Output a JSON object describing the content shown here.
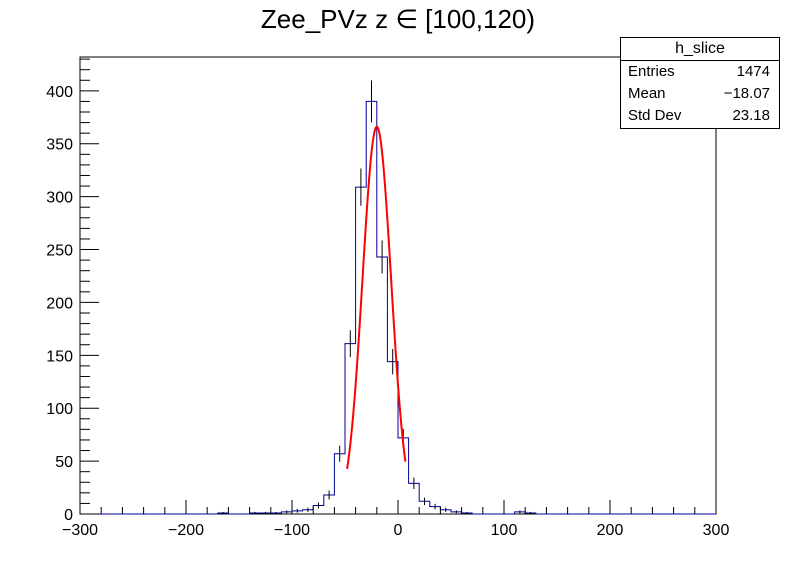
{
  "chart_data": {
    "type": "bar",
    "title": "Zee_PVz z ∈ [100,120)",
    "xlabel": "",
    "ylabel": "",
    "xlim": [
      -300,
      300
    ],
    "ylim": [
      0,
      432
    ],
    "bin_width": 10,
    "x_ticks": [
      "−300",
      "−200",
      "−100",
      "0",
      "100",
      "200",
      "300"
    ],
    "y_ticks": [
      "0",
      "50",
      "100",
      "150",
      "200",
      "250",
      "300",
      "350",
      "400"
    ],
    "grid": false,
    "legend": "top-right",
    "histogram": {
      "name": "h_slice",
      "color": "#000099",
      "bins": [
        {
          "x": -165,
          "y": 1
        },
        {
          "x": -135,
          "y": 1
        },
        {
          "x": -125,
          "y": 1
        },
        {
          "x": -115,
          "y": 1
        },
        {
          "x": -105,
          "y": 2
        },
        {
          "x": -95,
          "y": 3
        },
        {
          "x": -85,
          "y": 4
        },
        {
          "x": -75,
          "y": 8
        },
        {
          "x": -65,
          "y": 18
        },
        {
          "x": -55,
          "y": 57
        },
        {
          "x": -45,
          "y": 161
        },
        {
          "x": -35,
          "y": 309
        },
        {
          "x": -25,
          "y": 390
        },
        {
          "x": -15,
          "y": 243
        },
        {
          "x": -5,
          "y": 144
        },
        {
          "x": 5,
          "y": 72
        },
        {
          "x": 15,
          "y": 29
        },
        {
          "x": 25,
          "y": 12
        },
        {
          "x": 35,
          "y": 7
        },
        {
          "x": 45,
          "y": 4
        },
        {
          "x": 55,
          "y": 2
        },
        {
          "x": 65,
          "y": 1
        },
        {
          "x": 115,
          "y": 2
        },
        {
          "x": 125,
          "y": 1
        }
      ]
    },
    "fit": {
      "function": "gaus",
      "color": "#ff0000",
      "constant": 366,
      "mean": -20,
      "sigma": 13.5,
      "range": [
        -48,
        7
      ]
    },
    "stats_box": {
      "title": "h_slice",
      "rows": [
        {
          "label": "Entries",
          "value": "1474"
        },
        {
          "label": "Mean",
          "value": "−18.07"
        },
        {
          "label": "Std Dev",
          "value": "23.18"
        }
      ]
    }
  }
}
